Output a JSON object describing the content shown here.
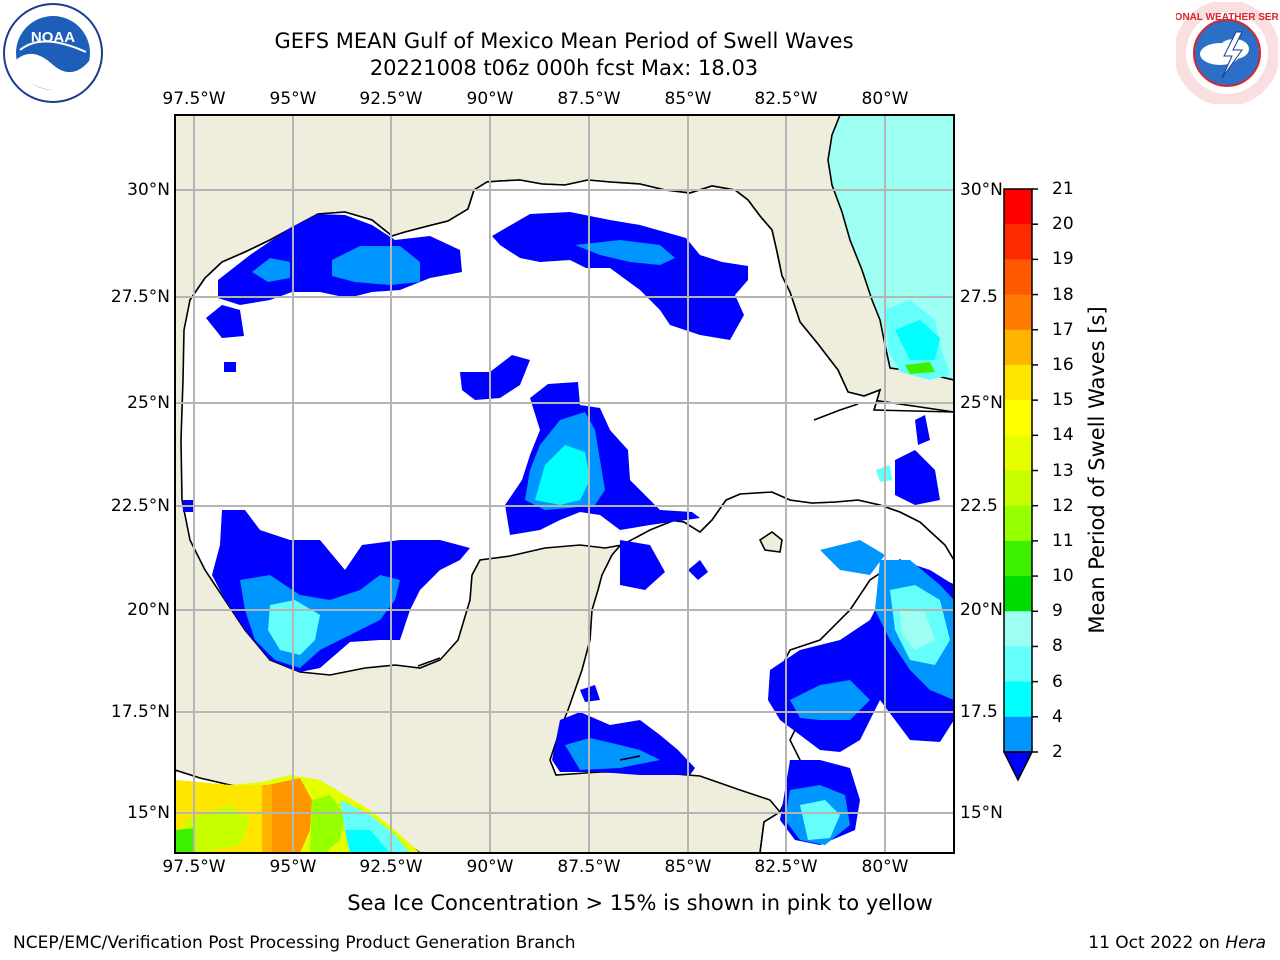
{
  "title": {
    "line1": "GEFS MEAN Gulf of Mexico Mean Period of Swell Waves",
    "line2": "20221008 t06z 000h fcst   Max: 18.03"
  },
  "logos": {
    "left": {
      "name": "noaa-logo",
      "text": "NOAA"
    },
    "right": {
      "name": "national-weather-service-logo",
      "text": "NATIONAL WEATHER SERVICE"
    }
  },
  "map": {
    "lon_range": [
      -98.25,
      -78.5
    ],
    "lat_range": [
      14.0,
      31.75
    ],
    "lon_ticks": [
      "97.5°W",
      "95°W",
      "92.5°W",
      "90°W",
      "87.5°W",
      "85°W",
      "82.5°W",
      "80°W"
    ],
    "lat_ticks": [
      "30°N",
      "27.5°N",
      "25°N",
      "22.5°N",
      "20°N",
      "17.5°N",
      "15°N"
    ],
    "right_lat_ticks": [
      "30°N",
      "27.5",
      "25°N",
      "22.5",
      "20°N",
      "17.5",
      "15°N"
    ],
    "land_color": "#efeedd",
    "grid_color": "#b5b5b5",
    "coast_color": "#000000"
  },
  "colorbar": {
    "title": "Mean Period of Swell Waves [s]",
    "labels": [
      "21",
      "20",
      "19",
      "18",
      "17",
      "16",
      "15",
      "14",
      "13",
      "12",
      "11",
      "10",
      "9",
      "8",
      "6",
      "4",
      "2"
    ],
    "colors": [
      "#ff0000",
      "#ff2a00",
      "#ff5a00",
      "#ff7a00",
      "#ff9600",
      "#ffb400",
      "#ffe600",
      "#ffff00",
      "#e6ff00",
      "#c8ff00",
      "#96ff00",
      "#3cf000",
      "#00dc00",
      "#50f080",
      "#9dfff2",
      "#64fffb",
      "#00ffff",
      "#0096ff"
    ],
    "extend_color": "#0000ff"
  },
  "caption": "Sea Ice Concentration > 15% is shown in pink to yellow",
  "footer": {
    "left": "NCEP/EMC/Verification Post Processing Product Generation Branch",
    "date": "11 Oct 2022 on ",
    "host": "Hera"
  }
}
